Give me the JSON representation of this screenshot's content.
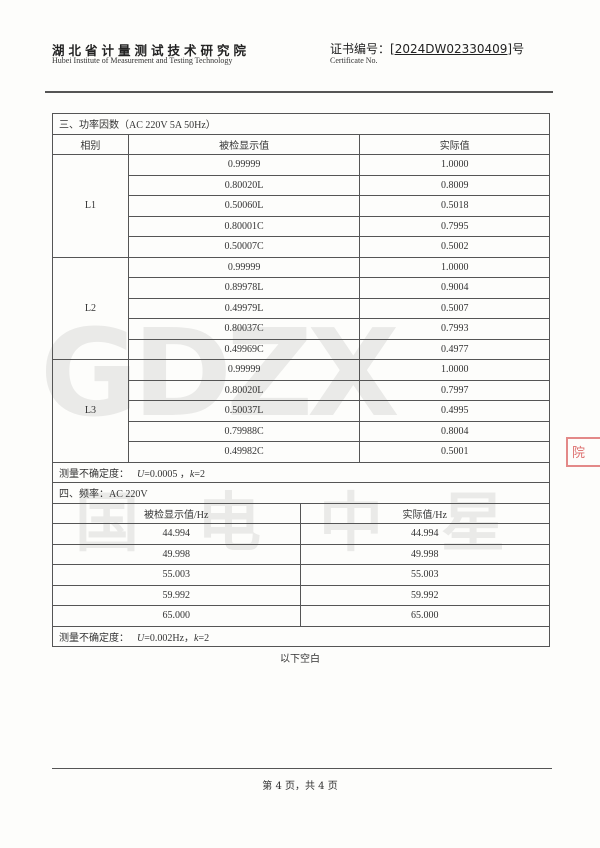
{
  "header": {
    "institute_cn": "湖北省计量测试技术研究院",
    "institute_en": "Hubei Institute of Measurement and Testing Technology",
    "cert_label": "证书编号：",
    "cert_number": "[2024DW02330409]",
    "cert_suffix": "号",
    "cert_label_en": "Certificate No."
  },
  "watermark": {
    "logo": "GDZX",
    "text": "国电中星"
  },
  "stamp": {
    "text": "院",
    "color": "#d23c3c"
  },
  "section3": {
    "title": "三、功率因数（AC 220V 5A 50Hz）",
    "headers": [
      "相别",
      "被检显示值",
      "实际值"
    ],
    "groups": [
      {
        "phase": "L1",
        "rows": [
          [
            "0.99999",
            "1.0000"
          ],
          [
            "0.80020L",
            "0.8009"
          ],
          [
            "0.50060L",
            "0.5018"
          ],
          [
            "0.80001C",
            "0.7995"
          ],
          [
            "0.50007C",
            "0.5002"
          ]
        ]
      },
      {
        "phase": "L2",
        "rows": [
          [
            "0.99999",
            "1.0000"
          ],
          [
            "0.89978L",
            "0.9004"
          ],
          [
            "0.49979L",
            "0.5007"
          ],
          [
            "0.80037C",
            "0.7993"
          ],
          [
            "0.49969C",
            "0.4977"
          ]
        ]
      },
      {
        "phase": "L3",
        "rows": [
          [
            "0.99999",
            "1.0000"
          ],
          [
            "0.80020L",
            "0.7997"
          ],
          [
            "0.50037L",
            "0.4995"
          ],
          [
            "0.79988C",
            "0.8004"
          ],
          [
            "0.49982C",
            "0.5001"
          ]
        ]
      }
    ],
    "uncertainty_label": "测量不确定度：",
    "uncertainty_u": "U",
    "uncertainty_u_val": "=0.0005 ，",
    "uncertainty_k": "k",
    "uncertainty_k_val": "=2"
  },
  "section4": {
    "title": "四、频率：AC 220V",
    "headers": [
      "被检显示值/Hz",
      "实际值/Hz"
    ],
    "rows": [
      [
        "44.994",
        "44.994"
      ],
      [
        "49.998",
        "49.998"
      ],
      [
        "55.003",
        "55.003"
      ],
      [
        "59.992",
        "59.992"
      ],
      [
        "65.000",
        "65.000"
      ]
    ],
    "uncertainty_label": "测量不确定度：",
    "uncertainty_u": "U",
    "uncertainty_u_val": "=0.002Hz，",
    "uncertainty_k": "k",
    "uncertainty_k_val": "=2"
  },
  "blank_note": "以下空白",
  "footer": {
    "page": "第 4 页，共 4 页"
  }
}
